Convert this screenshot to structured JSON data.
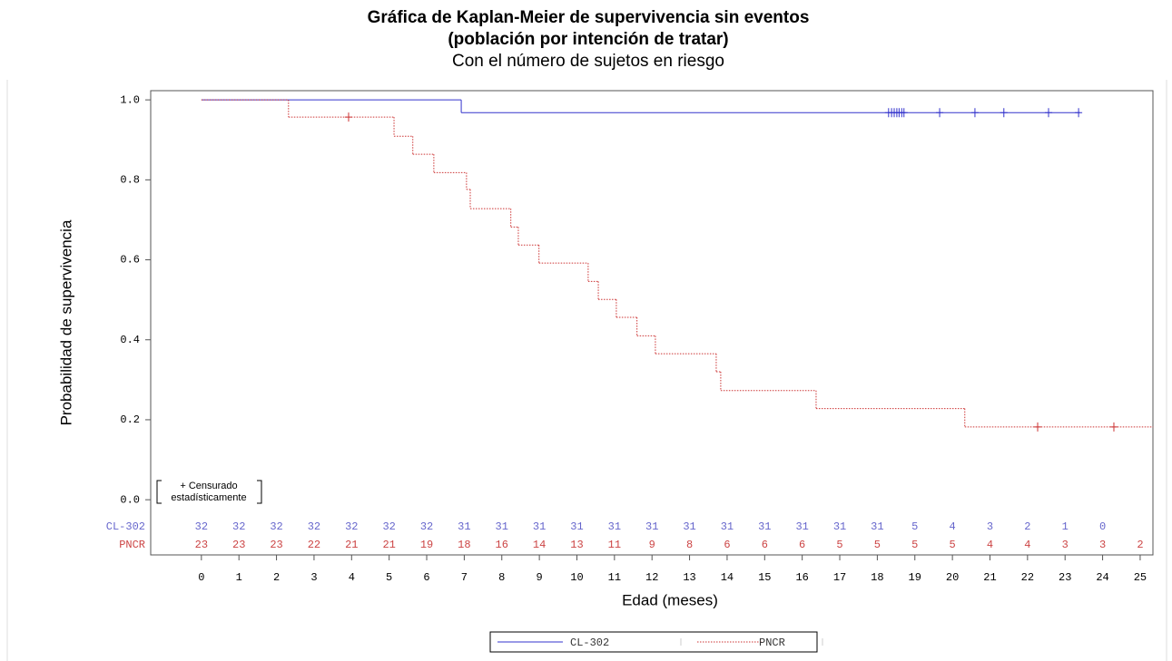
{
  "chart_data": {
    "type": "kaplan-meier",
    "title": [
      "Gráfica de Kaplan-Meier de supervivencia sin eventos",
      "(población por intención de tratar)"
    ],
    "subtitle": "Con el número de sujetos en riesgo",
    "xlabel": "Edad (meses)",
    "ylabel": "Probabilidad de supervivencia",
    "censor_note": [
      "+ Censurado",
      "estadísticamente"
    ],
    "xlim": [
      -1.35,
      25.34
    ],
    "ylim": [
      -0.138,
      1.023
    ],
    "xticks": [
      0,
      1,
      2,
      3,
      4,
      5,
      6,
      7,
      8,
      9,
      10,
      11,
      12,
      13,
      14,
      15,
      16,
      17,
      18,
      19,
      20,
      21,
      22,
      23,
      24,
      25
    ],
    "yticks": [
      {
        "value": 0,
        "label": "0.0"
      },
      {
        "value": 0.2,
        "label": "0.2"
      },
      {
        "value": 0.4,
        "label": "0.4"
      },
      {
        "value": 0.6,
        "label": "0.6"
      },
      {
        "value": 0.8,
        "label": "0.8"
      },
      {
        "value": 1,
        "label": "1.0"
      }
    ],
    "series": [
      {
        "name": "CL-302",
        "color": "#3333cc",
        "risk_color": "#6666cc",
        "dash": "none",
        "x": [
          0,
          6.92,
          23.4
        ],
        "values": [
          1.0,
          0.968,
          0.968
        ],
        "censored": {
          "x": [
            18.3,
            18.38,
            18.45,
            18.52,
            18.58,
            18.65,
            18.71,
            19.66,
            20.6,
            21.37,
            22.56,
            23.36
          ],
          "values": [
            0.968,
            0.968,
            0.968,
            0.968,
            0.968,
            0.968,
            0.968,
            0.968,
            0.968,
            0.968,
            0.968,
            0.968
          ]
        },
        "at_risk": [
          32,
          32,
          32,
          32,
          32,
          32,
          32,
          31,
          31,
          31,
          31,
          31,
          31,
          31,
          31,
          31,
          31,
          31,
          31,
          5,
          4,
          3,
          2,
          1,
          0
        ]
      },
      {
        "name": "PNCR",
        "color": "#cc3333",
        "risk_color": "#cc4444",
        "dash": "1.5 1.5",
        "x": [
          0,
          2.32,
          5.13,
          5.63,
          6.19,
          7.06,
          7.16,
          8.24,
          8.44,
          8.99,
          10.3,
          10.57,
          11.05,
          11.6,
          12.09,
          13.71,
          13.83,
          16.37,
          20.33,
          25.34
        ],
        "values": [
          1.0,
          0.957,
          0.909,
          0.864,
          0.818,
          0.776,
          0.728,
          0.682,
          0.637,
          0.592,
          0.546,
          0.501,
          0.456,
          0.41,
          0.365,
          0.32,
          0.273,
          0.228,
          0.182,
          0.182
        ],
        "censored": {
          "x": [
            3.92,
            22.27,
            24.3
          ],
          "values": [
            0.957,
            0.182,
            0.182
          ]
        },
        "at_risk": [
          23,
          23,
          23,
          22,
          21,
          21,
          19,
          18,
          16,
          14,
          13,
          11,
          9,
          8,
          6,
          6,
          6,
          5,
          5,
          5,
          5,
          4,
          4,
          3,
          3,
          2
        ]
      }
    ]
  }
}
